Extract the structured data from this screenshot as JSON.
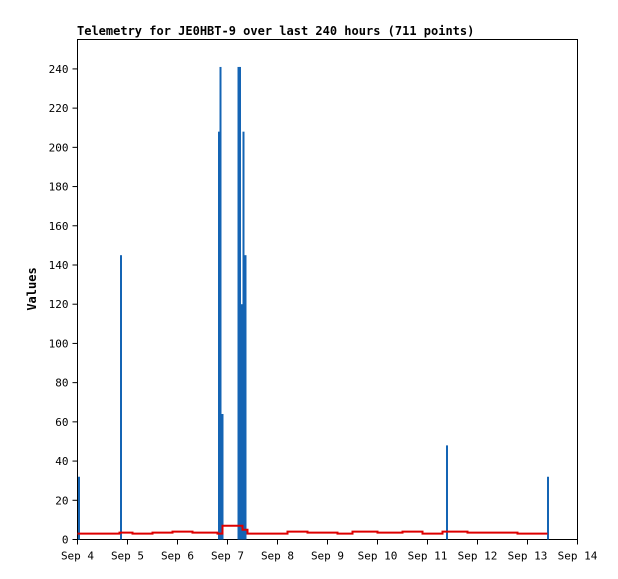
{
  "chart_data": {
    "type": "bar",
    "title": "Telemetry for JE0HBT-9 over last 240 hours (711 points)",
    "xlabel": "",
    "ylabel": "Values",
    "x_ticks": [
      "Sep 4",
      "Sep 5",
      "Sep 6",
      "Sep 7",
      "Sep 8",
      "Sep 9",
      "Sep 10",
      "Sep 11",
      "Sep 12",
      "Sep 13",
      "Sep 14"
    ],
    "xlim": [
      0,
      10
    ],
    "ylim": [
      0,
      255
    ],
    "y_ticks": [
      0,
      20,
      40,
      60,
      80,
      100,
      120,
      140,
      160,
      180,
      200,
      220,
      240
    ],
    "colors": {
      "bars": "#1464b4",
      "line": "#dd0000"
    },
    "series": [
      {
        "type": "bar",
        "values": [
          {
            "x": 0.0,
            "y": 32
          },
          {
            "x": 0.84,
            "y": 145
          },
          {
            "x": 2.8,
            "y": 208
          },
          {
            "x": 2.83,
            "y": 241
          },
          {
            "x": 2.87,
            "y": 64
          },
          {
            "x": 3.19,
            "y": 241
          },
          {
            "x": 3.22,
            "y": 241
          },
          {
            "x": 3.25,
            "y": 120
          },
          {
            "x": 3.29,
            "y": 208
          },
          {
            "x": 3.33,
            "y": 145
          },
          {
            "x": 7.36,
            "y": 48
          },
          {
            "x": 9.38,
            "y": 32
          }
        ]
      },
      {
        "type": "step-line",
        "values": [
          {
            "x": 0.0,
            "y": 3
          },
          {
            "x": 0.84,
            "y": 3.5
          },
          {
            "x": 1.1,
            "y": 3
          },
          {
            "x": 1.5,
            "y": 3.5
          },
          {
            "x": 1.9,
            "y": 4
          },
          {
            "x": 2.3,
            "y": 3.5
          },
          {
            "x": 2.8,
            "y": 3
          },
          {
            "x": 2.9,
            "y": 7
          },
          {
            "x": 3.3,
            "y": 5
          },
          {
            "x": 3.4,
            "y": 3
          },
          {
            "x": 4.2,
            "y": 4
          },
          {
            "x": 4.6,
            "y": 3.5
          },
          {
            "x": 5.2,
            "y": 3
          },
          {
            "x": 5.5,
            "y": 4
          },
          {
            "x": 6.0,
            "y": 3.5
          },
          {
            "x": 6.5,
            "y": 4
          },
          {
            "x": 6.9,
            "y": 3
          },
          {
            "x": 7.3,
            "y": 4
          },
          {
            "x": 7.8,
            "y": 3.5
          },
          {
            "x": 8.8,
            "y": 3
          },
          {
            "x": 9.4,
            "y": 3
          }
        ]
      }
    ]
  }
}
